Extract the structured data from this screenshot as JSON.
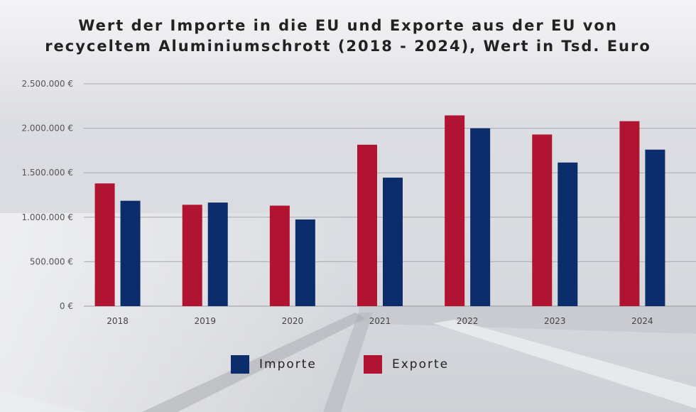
{
  "chart_data": {
    "type": "bar",
    "title": "Wert der Importe in die EU und Exporte aus der EU von recyceltem Aluminiumschrott (2018 - 2024), Wert in Tsd. Euro",
    "title_lines": [
      "Wert der Importe in die EU und Exporte aus der EU von",
      "recyceltem Aluminiumschrott (2018 - 2024), Wert in Tsd. Euro"
    ],
    "categories": [
      "2018",
      "2019",
      "2020",
      "2021",
      "2022",
      "2023",
      "2024"
    ],
    "series": [
      {
        "name": "Exporte",
        "color": "#b01430",
        "values": [
          1380000,
          1140000,
          1130000,
          1815000,
          2145000,
          1930000,
          2080000
        ]
      },
      {
        "name": "Importe",
        "color": "#0c2d6b",
        "values": [
          1185000,
          1165000,
          975000,
          1445000,
          2000000,
          1615000,
          1760000
        ]
      }
    ],
    "ylim": [
      0,
      2500000
    ],
    "yticks": [
      0,
      500000,
      1000000,
      1500000,
      2000000,
      2500000
    ],
    "ytick_labels": [
      "0 €",
      "500.000 €",
      "1.000.000 €",
      "1.500.000 €",
      "2.000.000 €",
      "2.500.000 €"
    ],
    "xlabel": "",
    "ylabel": "",
    "grid": true,
    "legend_position": "bottom-center"
  },
  "legend": {
    "importe_label": "Importe",
    "exporte_label": "Exporte",
    "importe_color": "#0c2d6b",
    "exporte_color": "#b01430"
  }
}
